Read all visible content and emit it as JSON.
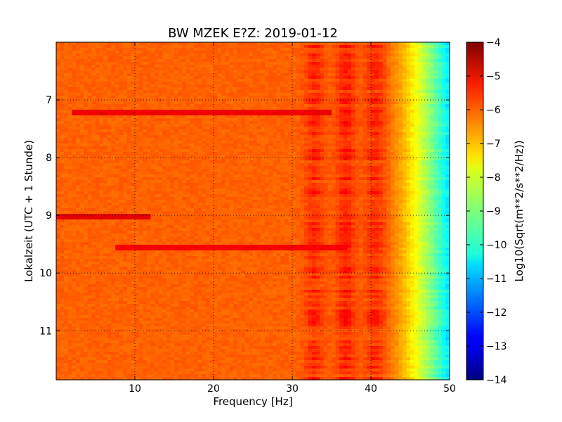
{
  "chart_data": {
    "type": "heatmap",
    "title": "BW MZEK E?Z: 2019-01-12",
    "xlabel": "Frequency [Hz]",
    "ylabel": "Lokalzeit (UTC + 1 Stunde)",
    "colorbar_label": "Log10(Sqrt(m**2/s**2/Hz))",
    "colormap": "jet",
    "xlim": [
      0,
      50
    ],
    "ylim": [
      11.85,
      6.0
    ],
    "zlim": [
      -14,
      -4
    ],
    "x_ticks": [
      10,
      20,
      30,
      40,
      50
    ],
    "y_ticks": [
      7,
      8,
      9,
      10,
      11
    ],
    "colorbar_ticks": [
      -4,
      -5,
      -6,
      -7,
      -8,
      -9,
      -10,
      -11,
      -12,
      -13,
      -14
    ],
    "grid": true,
    "background_level": -6.2,
    "rolloff": {
      "start_hz": 41.5,
      "end_hz": 50,
      "end_level": -10.5
    },
    "bands": [
      {
        "hz": 32.8,
        "level": -5.7
      },
      {
        "hz": 36.8,
        "level": -5.6
      },
      {
        "hz": 40.5,
        "level": -5.7
      }
    ],
    "lines": [
      {
        "time": 7.22,
        "x_from": 2,
        "x_to": 35,
        "level": -5.1
      },
      {
        "time": 9.03,
        "x_from": 0,
        "x_to": 12,
        "level": -5.0
      },
      {
        "time": 9.55,
        "x_from": 7.5,
        "x_to": 37,
        "level": -5.2
      }
    ]
  }
}
